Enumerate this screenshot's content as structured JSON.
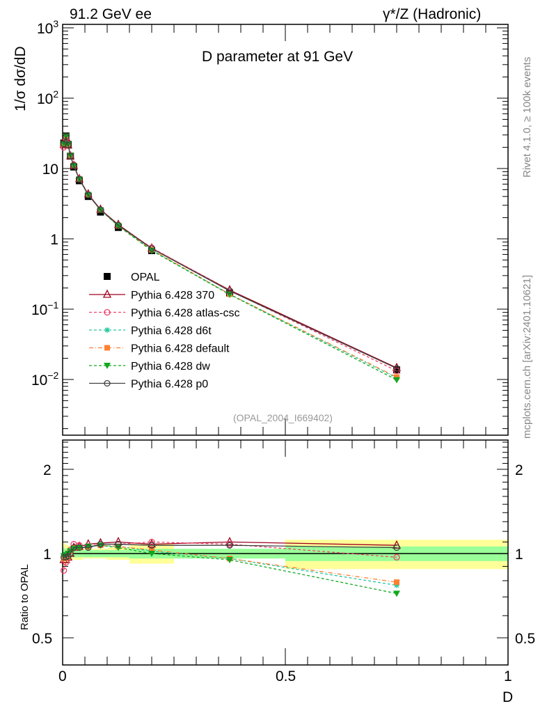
{
  "chart_data": [
    {
      "type": "line",
      "title": "D parameter at 91 GeV",
      "top_left": "91.2 GeV ee",
      "top_right": "γ*/Z (Hadronic)",
      "ylabel": "1/σ  dσ/dD",
      "xlabel": "D",
      "yscale": "log",
      "ylim": [
        0.0016,
        1000
      ],
      "xlim": [
        0,
        1
      ],
      "ytick_labels": [
        "10^-2",
        "10^-1",
        "1",
        "10",
        "10^2",
        "10^3"
      ],
      "xtick_labels": [
        "0",
        "0.5",
        "1"
      ],
      "side_label_1": "Rivet 4.1.0, ≥ 100k events",
      "side_label_2": "mcplots.cern.ch [arXiv:2401.10621]",
      "watermark": "(OPAL_2004_I669402)",
      "legend_position": "center-left",
      "bin_edges": [
        0,
        0.005,
        0.01,
        0.015,
        0.02,
        0.03,
        0.045,
        0.07,
        0.1,
        0.15,
        0.25,
        0.5,
        1
      ],
      "x": [
        0.0025,
        0.0075,
        0.0125,
        0.0175,
        0.025,
        0.0375,
        0.0575,
        0.085,
        0.125,
        0.2,
        0.375,
        0.75
      ],
      "data": {
        "name": "OPAL",
        "values": [
          23,
          29,
          22,
          15,
          10.5,
          6.7,
          4.0,
          2.4,
          1.45,
          0.68,
          0.17,
          0.0137
        ]
      },
      "series": [
        {
          "name": "Pythia 6.428 370",
          "color": "#a0001e",
          "marker": "triangle-open",
          "dash": "",
          "ratio": [
            0.95,
            0.95,
            0.97,
            1.0,
            1.05,
            1.06,
            1.08,
            1.09,
            1.1,
            1.08,
            1.1,
            1.07
          ]
        },
        {
          "name": "Pythia 6.428 atlas-csc",
          "color": "#f0406a",
          "marker": "circle-open",
          "dash": "4,3",
          "ratio": [
            0.87,
            0.93,
            1.0,
            1.03,
            1.08,
            1.07,
            1.06,
            1.08,
            1.08,
            1.1,
            1.08,
            0.97
          ]
        },
        {
          "name": "Pythia 6.428 d6t",
          "color": "#20c8a0",
          "marker": "star",
          "dash": "4,3",
          "ratio": [
            0.97,
            0.97,
            1.0,
            1.02,
            1.05,
            1.05,
            1.06,
            1.07,
            1.06,
            1.02,
            0.96,
            0.77
          ]
        },
        {
          "name": "Pythia 6.428 default",
          "color": "#ff8030",
          "marker": "square",
          "dash": "6,3,1,3",
          "ratio": [
            0.96,
            0.97,
            1.0,
            1.02,
            1.05,
            1.05,
            1.06,
            1.07,
            1.06,
            1.03,
            0.96,
            0.79
          ]
        },
        {
          "name": "Pythia 6.428 dw",
          "color": "#10a820",
          "marker": "triangle-down",
          "dash": "4,3",
          "ratio": [
            0.98,
            0.99,
            1.0,
            1.02,
            1.04,
            1.05,
            1.06,
            1.07,
            1.05,
            1.0,
            0.95,
            0.72
          ]
        },
        {
          "name": "Pythia 6.428 p0",
          "color": "#404040",
          "marker": "circle-open",
          "dash": "",
          "ratio": [
            0.97,
            0.97,
            0.98,
            1.0,
            1.05,
            1.05,
            1.05,
            1.08,
            1.08,
            1.07,
            1.07,
            1.05
          ]
        }
      ]
    },
    {
      "type": "line",
      "ylabel": "Ratio to OPAL",
      "yscale": "log",
      "ylim": [
        0.4,
        2.54
      ],
      "xlim": [
        0,
        1
      ],
      "ytick_labels": [
        "0.5",
        "1",
        "2"
      ],
      "stat_band": [
        0.05,
        0.04,
        0.04,
        0.03,
        0.03,
        0.03,
        0.03,
        0.03,
        0.03,
        0.04,
        0.04,
        0.06
      ],
      "total_band": [
        0.1,
        0.08,
        0.07,
        0.06,
        0.05,
        0.05,
        0.04,
        0.04,
        0.05,
        0.08,
        0.03,
        0.12
      ]
    }
  ],
  "colors": {
    "stat": "#99ff99",
    "total": "#ffff99",
    "frame": "#000000"
  }
}
